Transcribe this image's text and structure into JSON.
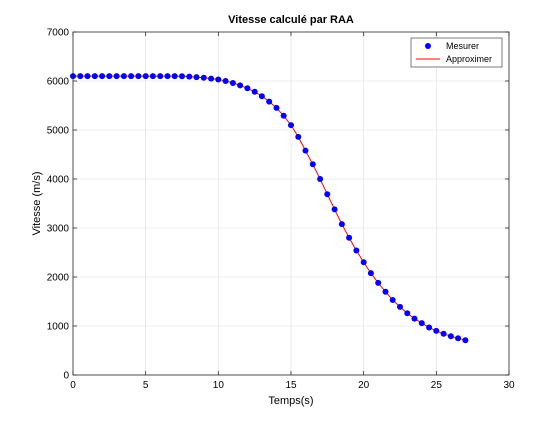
{
  "chart_data": {
    "type": "line",
    "title": "Vitesse calculé par RAA",
    "xlabel": "Temps(s)",
    "ylabel": "Vitesse (m/s)",
    "xlim": [
      0,
      30
    ],
    "ylim": [
      0,
      7000
    ],
    "xticks": [
      0,
      5,
      10,
      15,
      20,
      25,
      30
    ],
    "yticks": [
      0,
      1000,
      2000,
      3000,
      4000,
      5000,
      6000,
      7000
    ],
    "grid": true,
    "legend_position": "top-right",
    "series": [
      {
        "name": "Mesurer",
        "style": "markers",
        "color": "#0000ff",
        "x": [
          0,
          0.5,
          1,
          1.5,
          2,
          2.5,
          3,
          3.5,
          4,
          4.5,
          5,
          5.5,
          6,
          6.5,
          7,
          7.5,
          8,
          8.5,
          9,
          9.5,
          10,
          10.5,
          11,
          11.5,
          12,
          12.5,
          13,
          13.5,
          14,
          14.5,
          15,
          15.5,
          16,
          16.5,
          17,
          17.5,
          18,
          18.5,
          19,
          19.5,
          20,
          20.5,
          21,
          21.5,
          22,
          22.5,
          23,
          23.5,
          24,
          24.5,
          25,
          25.5,
          26,
          26.5,
          27
        ],
        "y": [
          6100,
          6100,
          6100,
          6100,
          6100,
          6100,
          6100,
          6100,
          6100,
          6100,
          6100,
          6100,
          6100,
          6100,
          6100,
          6095,
          6090,
          6080,
          6065,
          6050,
          6030,
          6000,
          5960,
          5910,
          5850,
          5780,
          5690,
          5580,
          5450,
          5290,
          5100,
          4860,
          4580,
          4300,
          4000,
          3690,
          3380,
          3080,
          2800,
          2540,
          2300,
          2080,
          1880,
          1700,
          1530,
          1390,
          1260,
          1150,
          1060,
          970,
          900,
          840,
          790,
          750,
          710
        ]
      },
      {
        "name": "Approximer",
        "style": "line",
        "color": "#ff0000",
        "x": [
          0,
          0.5,
          1,
          1.5,
          2,
          2.5,
          3,
          3.5,
          4,
          4.5,
          5,
          5.5,
          6,
          6.5,
          7,
          7.5,
          8,
          8.5,
          9,
          9.5,
          10,
          10.5,
          11,
          11.5,
          12,
          12.5,
          13,
          13.5,
          14,
          14.5,
          15,
          15.5,
          16,
          16.5,
          17,
          17.5,
          18,
          18.5,
          19,
          19.5,
          20,
          20.5,
          21,
          21.5,
          22,
          22.5,
          23,
          23.5,
          24,
          24.5,
          25,
          25.5,
          26,
          26.5,
          27
        ],
        "y": [
          6100,
          6100,
          6100,
          6100,
          6100,
          6100,
          6100,
          6100,
          6100,
          6100,
          6100,
          6100,
          6100,
          6100,
          6100,
          6095,
          6090,
          6080,
          6065,
          6050,
          6030,
          6000,
          5960,
          5910,
          5850,
          5780,
          5690,
          5580,
          5450,
          5290,
          5100,
          4860,
          4580,
          4300,
          4000,
          3690,
          3380,
          3080,
          2800,
          2540,
          2300,
          2080,
          1880,
          1700,
          1530,
          1390,
          1260,
          1150,
          1060,
          970,
          900,
          840,
          790,
          750,
          710
        ]
      }
    ]
  }
}
